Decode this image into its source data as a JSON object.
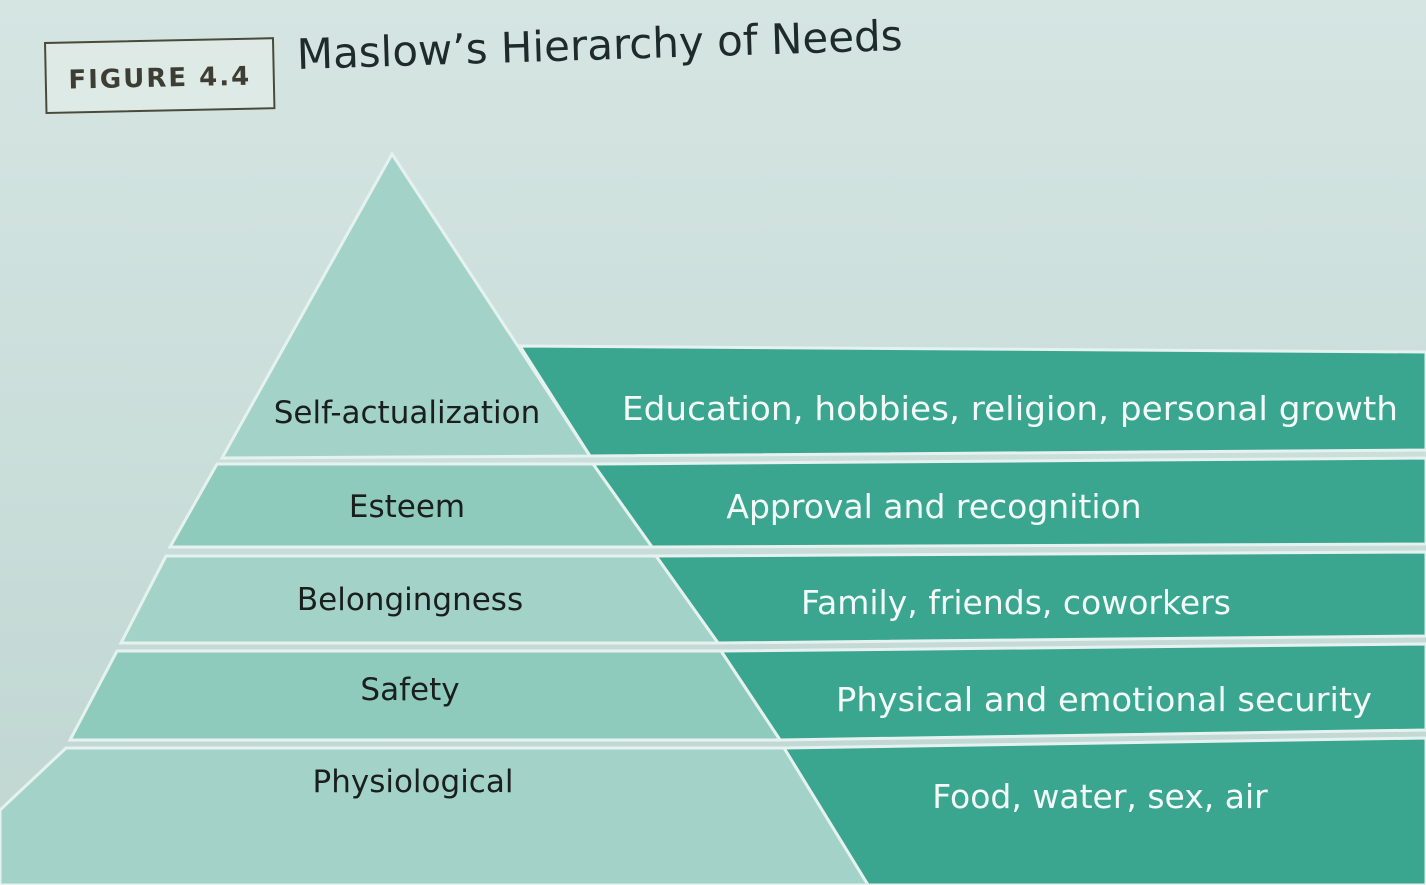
{
  "figure": {
    "label": "FIGURE 4.4",
    "title": "Maslow’s Hierarchy of Needs"
  },
  "colors": {
    "pyramid_light": "#a3d3c8",
    "pyramid_mid": "#8fcbbc",
    "band_teal": "#3aa68f",
    "divider": "#e6f2ef",
    "page_background": "#cfe1dd"
  },
  "levels": [
    {
      "name": "Self-actualization",
      "examples": "Education, hobbies, religion, personal growth"
    },
    {
      "name": "Esteem",
      "examples": "Approval and recognition"
    },
    {
      "name": "Belongingness",
      "examples": "Family, friends, coworkers"
    },
    {
      "name": "Safety",
      "examples": "Physical and emotional security"
    },
    {
      "name": "Physiological",
      "examples": "Food, water, sex, air"
    }
  ]
}
